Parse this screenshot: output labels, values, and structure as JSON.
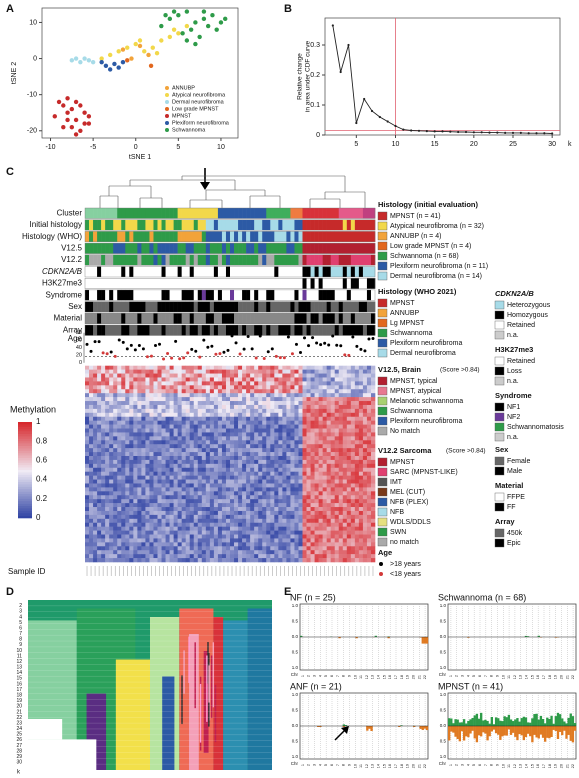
{
  "panel_labels": {
    "a": "A",
    "b": "B",
    "c": "C",
    "d": "D",
    "e": "E"
  },
  "chart_data": [
    {
      "type": "scatter",
      "xlabel": "tSNE 1",
      "ylabel": "tSNE 2",
      "xlim": [
        -11,
        12
      ],
      "ylim": [
        -22,
        14
      ],
      "xticks": [
        -10,
        -5,
        0,
        5,
        10
      ],
      "yticks": [
        -20,
        -10,
        0,
        10
      ],
      "series": [
        {
          "name": "ANNUBP",
          "color": "#f2a33a",
          "x": [
            -1.5,
            0.5,
            1.5,
            -0.5
          ],
          "values": [
            2.5,
            3.5,
            1,
            0
          ]
        },
        {
          "name": "Atypical neurofibroma",
          "color": "#f2d84a",
          "x": [
            -3,
            -2,
            -1,
            0,
            1,
            2,
            3,
            4,
            5,
            -4,
            2.5,
            0.5,
            4.5,
            6
          ],
          "values": [
            1,
            2,
            3,
            4,
            2,
            3,
            5,
            6,
            7,
            0,
            1.5,
            5,
            8,
            9
          ]
        },
        {
          "name": "Dermal neurofibroma",
          "color": "#a7dbe8",
          "x": [
            -7.5,
            -7,
            -6.5,
            -6,
            -5.5,
            -5
          ],
          "values": [
            -0.5,
            0,
            -1,
            0,
            -0.5,
            -1
          ]
        },
        {
          "name": "Low grade MPNST",
          "color": "#e2671e",
          "x": [
            -1,
            1.8
          ],
          "values": [
            -0.5,
            -2
          ]
        },
        {
          "name": "MPNST",
          "color": "#c62a2a",
          "x": [
            -9,
            -8.5,
            -8,
            -7.5,
            -7,
            -6.5,
            -6,
            -5.5,
            -8,
            -7,
            -6,
            -9.5,
            -8.5,
            -7.5,
            -6.5,
            -5.5,
            -7,
            -8
          ],
          "values": [
            -12,
            -13,
            -11,
            -14,
            -12,
            -13,
            -15,
            -16,
            -17,
            -17,
            -18,
            -16,
            -19,
            -19,
            -20,
            -18,
            -21,
            -15
          ]
        },
        {
          "name": "Plexiform neurofibroma",
          "color": "#2c5aa5",
          "x": [
            -4,
            -3.5,
            -2.5,
            -2,
            -3,
            -1.5
          ],
          "values": [
            -1,
            -2,
            -1.5,
            -2.5,
            -3,
            -1
          ]
        },
        {
          "name": "Schwannoma",
          "color": "#2e9b49",
          "x": [
            3,
            4,
            5,
            6,
            7,
            8,
            9,
            10,
            5.5,
            6.5,
            7.5,
            8.5,
            4.5,
            9.5,
            3.5,
            6,
            8,
            10.5,
            7
          ],
          "values": [
            9,
            11,
            12,
            13,
            10,
            11,
            12,
            10,
            7,
            8,
            6,
            9,
            13,
            8,
            12,
            5,
            13,
            11,
            4
          ]
        }
      ]
    },
    {
      "type": "line",
      "ylabel": [
        "Relative change",
        "in area under CDF curve"
      ],
      "xlabel": "k",
      "x": [
        2,
        3,
        4,
        5,
        6,
        7,
        8,
        9,
        10,
        11,
        12,
        13,
        14,
        15,
        16,
        17,
        18,
        19,
        20,
        21,
        22,
        23,
        24,
        25,
        26,
        27,
        28,
        29,
        30
      ],
      "values": [
        0.365,
        0.21,
        0.3,
        0.04,
        0.12,
        0.08,
        0.06,
        0.045,
        0.03,
        0.018,
        0.015,
        0.014,
        0.013,
        0.012,
        0.012,
        0.011,
        0.01,
        0.01,
        0.009,
        0.009,
        0.008,
        0.008,
        0.007,
        0.007,
        0.007,
        0.006,
        0.006,
        0.006,
        0.005
      ],
      "color": "#222222",
      "xlim": [
        1,
        31
      ],
      "ylim": [
        0,
        0.39
      ],
      "xticks": [
        5,
        10,
        15,
        20,
        25,
        30
      ],
      "yticks": [
        0,
        0.1,
        0.2,
        0.3
      ],
      "reference_lines": {
        "x": 10,
        "y": 0.015,
        "color": "#e06070"
      }
    }
  ],
  "panel_c": {
    "row_labels": [
      "Cluster",
      "Initial histology",
      "Histology (WHO)",
      "V12.5",
      "V12.2",
      "CDKN2A/B",
      "H3K27me3",
      "Syndrome",
      "Sex",
      "Material",
      "Array",
      "Age"
    ],
    "age_ticks": [
      "80",
      "60",
      "40",
      "20",
      "0"
    ],
    "sample_id_label": "Sample ID",
    "methylation": {
      "title": "Methylation",
      "ticks": [
        "1",
        "0.8",
        "0.6",
        "0.4",
        "0.2",
        "0"
      ]
    },
    "legends_left": [
      {
        "title": "Histology (initial evaluation)",
        "items": [
          {
            "label": "MPNST (n = 41)",
            "color": "#c62a2a"
          },
          {
            "label": "Atypical neurofibroma (n = 32)",
            "color": "#f2d84a"
          },
          {
            "label": "ANNUBP (n = 4)",
            "color": "#f2a33a"
          },
          {
            "label": "Low grade MPNST (n = 4)",
            "color": "#e2671e"
          },
          {
            "label": "Schwannoma (n = 68)",
            "color": "#2e9b49"
          },
          {
            "label": "Plexiform neurofibroma (n = 11)",
            "color": "#2c5aa5"
          },
          {
            "label": "Dermal neurofibroma (n = 14)",
            "color": "#a7dbe8"
          }
        ]
      },
      {
        "title": "Histology (WHO 2021)",
        "items": [
          {
            "label": "MPNST",
            "color": "#c62a2a"
          },
          {
            "label": "ANNUBP",
            "color": "#f2a33a"
          },
          {
            "label": "Lg MPNST",
            "color": "#e2671e"
          },
          {
            "label": "Schwannoma",
            "color": "#2e9b49"
          },
          {
            "label": "Plexiform neurofibroma",
            "color": "#2c5aa5"
          },
          {
            "label": "Dermal neurofibroma",
            "color": "#a7dbe8"
          }
        ]
      },
      {
        "title": "V12.5, Brain",
        "note": "(Score >0.84)",
        "items": [
          {
            "label": "MPNST, typical",
            "color": "#b22030"
          },
          {
            "label": "MPNST, atypical",
            "color": "#e87890"
          },
          {
            "label": "Melanotic schwannoma",
            "color": "#a8d070"
          },
          {
            "label": "Schwannoma",
            "color": "#2e9b49"
          },
          {
            "label": "Plexiform neurofibroma",
            "color": "#2c5aa5"
          },
          {
            "label": "No match",
            "color": "#aaaaaa"
          }
        ]
      },
      {
        "title": "V12.2 Sarcoma",
        "note": "(Score >0.84)",
        "items": [
          {
            "label": "MPNST",
            "color": "#b22030"
          },
          {
            "label": "SARC (MPNST-LIKE)",
            "color": "#e04070"
          },
          {
            "label": "IMT",
            "color": "#555555"
          },
          {
            "label": "MEL (CUT)",
            "color": "#7a3a1a"
          },
          {
            "label": "NFB (PLEX)",
            "color": "#2c5aa5"
          },
          {
            "label": "NFB",
            "color": "#a7dbe8"
          },
          {
            "label": "WDLS/DDLS",
            "color": "#e6e080"
          },
          {
            "label": "SWN",
            "color": "#2e9b49"
          },
          {
            "label": "no match",
            "color": "#aaaaaa"
          }
        ]
      },
      {
        "title": "Age",
        "dots": true,
        "items": [
          {
            "label": ">18 years",
            "color": "#000000"
          },
          {
            "label": "<18 years",
            "color": "#d23a3a"
          }
        ]
      }
    ],
    "legends_right": [
      {
        "title": "CDKN2A/B",
        "items": [
          {
            "label": "Heterozygous",
            "color": "#a7dbe8"
          },
          {
            "label": "Homozygous",
            "color": "#000000"
          },
          {
            "label": "Retained",
            "color": "#ffffff"
          },
          {
            "label": "n.a.",
            "color": "#cccccc"
          }
        ]
      },
      {
        "title": "H3K27me3",
        "items": [
          {
            "label": "Retained",
            "color": "#ffffff"
          },
          {
            "label": "Loss",
            "color": "#000000"
          },
          {
            "label": "n.a.",
            "color": "#cccccc"
          }
        ]
      },
      {
        "title": "Syndrome",
        "items": [
          {
            "label": "NF1",
            "color": "#000000"
          },
          {
            "label": "NF2",
            "color": "#6a3a9a"
          },
          {
            "label": "Schwannomatosis",
            "color": "#2e9b49"
          },
          {
            "label": "n.a.",
            "color": "#cccccc"
          }
        ]
      },
      {
        "title": "Sex",
        "items": [
          {
            "label": "Female",
            "color": "#666666"
          },
          {
            "label": "Male",
            "color": "#000000"
          }
        ]
      },
      {
        "title": "Material",
        "items": [
          {
            "label": "FFPE",
            "color": "#ffffff"
          },
          {
            "label": "FF",
            "color": "#000000"
          }
        ]
      },
      {
        "title": "Array",
        "items": [
          {
            "label": "450k",
            "color": "#666666"
          },
          {
            "label": "Epic",
            "color": "#000000"
          }
        ]
      }
    ]
  },
  "panel_d": {
    "k_values": [
      "2",
      "3",
      "4",
      "5",
      "6",
      "7",
      "8",
      "9",
      "10",
      "11",
      "12",
      "13",
      "14",
      "15",
      "16",
      "17",
      "18",
      "19",
      "20",
      "21",
      "22",
      "23",
      "24",
      "25",
      "26",
      "27",
      "28",
      "29",
      "30"
    ],
    "axis_label": "k"
  },
  "panel_e": {
    "panels": [
      {
        "title": "NF (n = 25)"
      },
      {
        "title": "Schwannoma (n = 68)"
      },
      {
        "title": "ANF (n = 21)"
      },
      {
        "title": "MPNST (n = 41)"
      }
    ],
    "yticks": [
      "1.0",
      "0.5",
      "0.0",
      "0.5",
      "1.0"
    ],
    "chr_label": "Chr",
    "chromosomes": [
      "1",
      "2",
      "3",
      "4",
      "5",
      "6",
      "7",
      "8",
      "9",
      "10",
      "11",
      "12",
      "13",
      "14",
      "15",
      "16",
      "17",
      "18",
      "19",
      "20",
      "21",
      "22"
    ]
  }
}
